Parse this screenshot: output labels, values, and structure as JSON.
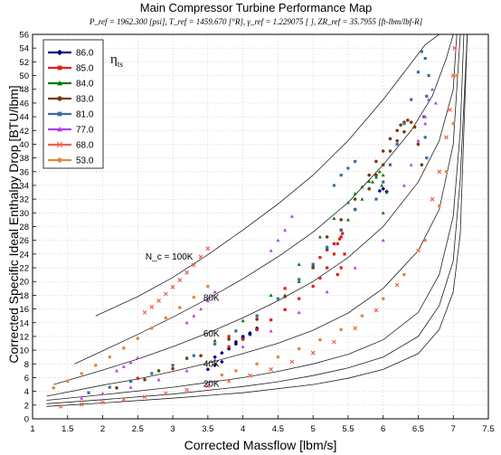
{
  "chart_data": {
    "type": "scatter",
    "title": "Main Compressor Turbine Performance Map",
    "subtitle": "P_ref = 1962.300 [psi],   T_ref = 1459.670 [°R],   γ_ref = 1.229075 [ ],   ZR_ref = 35.7955 [ft-lbm/lbf-R]",
    "xlabel": "Corrected Massflow [lbm/s]",
    "ylabel": "Corrected Specific Ideal Enthalpy Drop [BTU/lbm]",
    "xlim": [
      1,
      7.5
    ],
    "ylim": [
      0,
      56
    ],
    "xticks": [
      "1",
      "1.5",
      "2",
      "2.5",
      "3",
      "3.5",
      "4",
      "4.5",
      "5",
      "5.5",
      "6",
      "6.5",
      "7",
      "7.5"
    ],
    "yticks": [
      "0",
      "2",
      "4",
      "6",
      "8",
      "10",
      "12",
      "14",
      "16",
      "18",
      "20",
      "22",
      "24",
      "26",
      "28",
      "30",
      "32",
      "34",
      "36",
      "38",
      "40",
      "42",
      "44",
      "46",
      "48",
      "50",
      "52",
      "54",
      "56"
    ],
    "grid": true,
    "legend_position": "top-left",
    "legend_title": "η_ts",
    "speed_labels": [
      {
        "text": "N_c = 100K",
        "x": 2.95,
        "y": 23.2
      },
      {
        "text": "80K",
        "x": 3.55,
        "y": 17.2
      },
      {
        "text": "60K",
        "x": 3.55,
        "y": 12.0
      },
      {
        "text": "40K",
        "x": 3.55,
        "y": 7.6
      },
      {
        "text": "20K",
        "x": 3.55,
        "y": 4.7
      }
    ],
    "speed_lines": [
      {
        "x": [
          1.9,
          2.5,
          3.0,
          3.5,
          4.0,
          4.5,
          5.0,
          5.5,
          6.0,
          6.3,
          6.6,
          6.8,
          7.0
        ],
        "y": [
          15.0,
          17.8,
          20.6,
          23.9,
          27.5,
          31.3,
          35.5,
          40.5,
          46.5,
          50.5,
          54.5,
          57.0,
          60.0
        ]
      },
      {
        "x": [
          1.6,
          2.0,
          2.5,
          3.0,
          3.5,
          4.0,
          4.5,
          5.0,
          5.5,
          6.0,
          6.4,
          6.7,
          6.9,
          7.0
        ],
        "y": [
          8.0,
          9.9,
          12.3,
          14.8,
          17.5,
          20.4,
          23.6,
          27.2,
          31.5,
          37.0,
          42.0,
          47.0,
          52.5,
          57.0
        ]
      },
      {
        "x": [
          1.3,
          2.0,
          2.5,
          3.0,
          3.5,
          4.0,
          4.5,
          5.0,
          5.5,
          6.0,
          6.5,
          6.8,
          7.0,
          7.05
        ],
        "y": [
          5.0,
          7.1,
          8.7,
          10.5,
          12.5,
          14.7,
          17.2,
          20.0,
          23.5,
          28.0,
          34.5,
          40.5,
          48.0,
          57.0
        ]
      },
      {
        "x": [
          1.2,
          2.0,
          2.5,
          3.0,
          3.5,
          4.0,
          4.5,
          5.0,
          5.5,
          6.0,
          6.5,
          6.8,
          7.0,
          7.1
        ],
        "y": [
          3.3,
          4.9,
          5.8,
          6.9,
          8.1,
          9.5,
          11.0,
          12.9,
          15.4,
          19.0,
          24.5,
          30.5,
          40.0,
          57.0
        ]
      },
      {
        "x": [
          1.2,
          2.0,
          3.0,
          3.5,
          4.0,
          4.5,
          5.0,
          5.5,
          6.0,
          6.5,
          6.8,
          7.0,
          7.1,
          7.15
        ],
        "y": [
          2.7,
          3.5,
          4.6,
          5.3,
          6.0,
          6.9,
          8.0,
          9.4,
          11.5,
          15.5,
          21.0,
          29.5,
          42.0,
          57.0
        ]
      },
      {
        "x": [
          1.2,
          2.0,
          3.0,
          4.0,
          4.5,
          5.0,
          5.5,
          6.0,
          6.5,
          6.8,
          7.0,
          7.1,
          7.2
        ],
        "y": [
          2.2,
          2.8,
          3.6,
          4.7,
          5.4,
          6.3,
          7.4,
          9.0,
          12.0,
          16.5,
          23.0,
          35.0,
          57.0
        ]
      },
      {
        "x": [
          1.2,
          2.0,
          3.0,
          4.0,
          5.0,
          5.5,
          6.0,
          6.5,
          6.8,
          7.0,
          7.1,
          7.2
        ],
        "y": [
          1.8,
          2.3,
          3.0,
          3.8,
          5.0,
          5.9,
          7.2,
          9.5,
          13.0,
          18.5,
          27.0,
          57.0
        ]
      }
    ],
    "series": [
      {
        "name": "86.0",
        "color": "#000080",
        "marker": "diamond",
        "x": [
          3.6,
          3.7,
          3.8,
          3.9,
          4.0,
          4.1,
          4.2,
          4.0,
          4.1,
          4.2,
          3.9,
          4.0,
          5.95,
          6.0,
          6.05,
          3.5,
          3.6,
          3.7
        ],
        "y": [
          9.0,
          9.6,
          10.2,
          10.9,
          11.6,
          12.3,
          13.0,
          12.0,
          12.5,
          13.2,
          11.2,
          11.8,
          33.2,
          33.5,
          33.1,
          7.2,
          7.8,
          8.3
        ]
      },
      {
        "name": "85.0",
        "color": "#e0201a",
        "marker": "square",
        "x": [
          3.8,
          4.0,
          4.2,
          4.4,
          4.6,
          4.8,
          5.0,
          5.1,
          5.2,
          5.3,
          5.35,
          5.4,
          5.42,
          5.38,
          5.3,
          5.2,
          5.1,
          5.0,
          4.6,
          4.2,
          3.8,
          3.2,
          2.8,
          2.5,
          5.45,
          5.4,
          5.35
        ],
        "y": [
          10.5,
          11.6,
          13.0,
          14.4,
          15.9,
          17.5,
          19.3,
          20.5,
          22.0,
          24.0,
          25.5,
          26.5,
          27.0,
          26.2,
          25.5,
          24.6,
          23.5,
          22.4,
          19.0,
          15.0,
          12.0,
          8.8,
          7.0,
          5.9,
          24.0,
          22.0,
          21.0
        ]
      },
      {
        "name": "84.0",
        "color": "#007a00",
        "marker": "triangle",
        "x": [
          4.6,
          4.8,
          5.0,
          5.2,
          5.4,
          5.5,
          5.6,
          5.7,
          5.8,
          5.85,
          5.9,
          5.95,
          6.0,
          5.98,
          5.9,
          5.8,
          5.7,
          5.6,
          5.5,
          5.3,
          5.1,
          4.8,
          4.4,
          4.0,
          3.6,
          3.2,
          2.8,
          2.4,
          6.05,
          6.0
        ],
        "y": [
          18.0,
          20.0,
          22.3,
          24.8,
          27.5,
          29.0,
          30.5,
          32.0,
          33.6,
          34.5,
          35.5,
          36.0,
          35.5,
          34.0,
          35.2,
          34.6,
          33.8,
          32.8,
          31.5,
          29.2,
          26.5,
          22.5,
          18.0,
          14.3,
          11.4,
          8.9,
          7.0,
          5.5,
          33.0,
          30.0
        ]
      },
      {
        "name": "83.0",
        "color": "#7a3a12",
        "marker": "circle",
        "x": [
          5.2,
          5.4,
          5.6,
          5.8,
          5.9,
          6.0,
          6.1,
          6.2,
          6.25,
          6.3,
          6.35,
          6.4,
          6.45,
          6.3,
          6.2,
          6.1,
          6.0,
          5.9,
          5.8,
          5.6,
          5.4,
          5.0,
          4.6,
          4.2,
          3.8,
          3.4,
          3.0,
          2.6,
          2.2,
          6.5,
          6.55
        ],
        "y": [
          26.5,
          29.0,
          32.0,
          35.5,
          37.5,
          39.0,
          40.8,
          42.0,
          42.8,
          43.2,
          43.5,
          43.2,
          42.5,
          41.8,
          40.5,
          39.0,
          37.0,
          35.5,
          33.5,
          30.5,
          27.5,
          22.0,
          17.8,
          14.5,
          11.6,
          9.2,
          7.3,
          5.7,
          4.5,
          40.0,
          37.0
        ]
      },
      {
        "name": "81.0",
        "color": "#3c6e9c",
        "marker": "square",
        "x": [
          5.9,
          6.0,
          6.1,
          6.2,
          6.3,
          6.4,
          6.5,
          6.55,
          6.6,
          6.65,
          6.62,
          6.58,
          6.6,
          6.62,
          5.6,
          5.4,
          5.2,
          5.0,
          4.8,
          4.5,
          4.2,
          3.9,
          3.6,
          3.3,
          3.0,
          2.7,
          2.4,
          2.1,
          1.8,
          5.3,
          5.4,
          5.5,
          5.6
        ],
        "y": [
          32.0,
          34.5,
          37.0,
          40.0,
          43.0,
          46.5,
          50.5,
          53.5,
          52.5,
          50.0,
          47.0,
          44.0,
          41.0,
          38.0,
          30.5,
          27.5,
          25.0,
          22.5,
          20.3,
          17.5,
          15.0,
          12.8,
          10.9,
          9.2,
          7.8,
          6.6,
          5.5,
          4.6,
          3.8,
          34.0,
          35.5,
          36.5,
          37.5
        ]
      },
      {
        "name": "77.0",
        "color": "#b040e0",
        "marker": "triangle",
        "x": [
          6.3,
          6.4,
          6.5,
          6.6,
          6.65,
          6.7,
          6.75,
          6.6,
          4.4,
          4.5,
          4.6,
          4.7,
          3.2,
          3.3,
          3.4,
          3.5,
          3.6,
          2.2,
          2.3,
          2.4,
          2.5,
          6.0,
          5.6,
          5.2,
          4.8,
          4.4,
          4.0,
          3.6,
          3.2,
          2.8,
          2.4,
          2.0,
          1.7
        ],
        "y": [
          34.0,
          37.0,
          40.5,
          44.0,
          46.5,
          48.0,
          46.0,
          43.0,
          24.5,
          26.0,
          27.5,
          29.5,
          14.0,
          15.0,
          16.0,
          17.2,
          18.5,
          7.0,
          7.6,
          8.2,
          8.9,
          26.0,
          22.0,
          18.5,
          15.5,
          12.8,
          10.5,
          8.6,
          7.0,
          5.7,
          4.6,
          3.7,
          3.0
        ]
      },
      {
        "name": "68.0",
        "color": "#f06050",
        "marker": "x",
        "x": [
          2.6,
          2.7,
          2.8,
          2.9,
          3.0,
          3.1,
          3.2,
          3.3,
          3.4,
          3.5,
          6.7,
          6.8,
          6.9,
          6.95,
          7.0,
          7.02,
          6.5,
          6.2,
          5.9,
          5.6,
          5.3,
          5.0,
          4.7,
          4.4,
          4.1,
          3.8,
          3.5,
          3.2,
          2.9,
          2.6,
          2.3,
          2.0,
          1.7,
          1.4
        ],
        "y": [
          15.5,
          16.3,
          17.2,
          18.2,
          19.2,
          20.2,
          21.3,
          22.4,
          23.6,
          24.8,
          32.0,
          36.0,
          41.0,
          45.0,
          50.0,
          54.0,
          24.5,
          19.5,
          15.8,
          13.2,
          11.2,
          9.6,
          8.3,
          7.2,
          6.3,
          5.5,
          4.8,
          4.2,
          3.7,
          3.2,
          2.8,
          2.4,
          2.1,
          1.8
        ]
      },
      {
        "name": "53.0",
        "color": "#e08a40",
        "marker": "circle",
        "x": [
          1.3,
          1.5,
          1.7,
          1.9,
          2.1,
          2.3,
          2.5,
          2.7,
          2.9,
          3.1,
          3.3,
          3.5,
          3.7,
          3.9,
          4.2,
          4.5,
          4.8,
          5.1,
          5.4,
          5.7,
          6.0,
          6.3,
          6.6,
          6.8,
          6.9,
          7.0,
          7.05
        ],
        "y": [
          4.5,
          5.5,
          6.6,
          7.8,
          9.0,
          10.3,
          11.7,
          13.2,
          14.7,
          16.2,
          17.7,
          19.3,
          6.4,
          7.0,
          8.0,
          9.0,
          10.2,
          11.5,
          13.0,
          15.0,
          17.5,
          21.0,
          26.0,
          31.0,
          36.0,
          43.0,
          50.0
        ]
      }
    ]
  }
}
